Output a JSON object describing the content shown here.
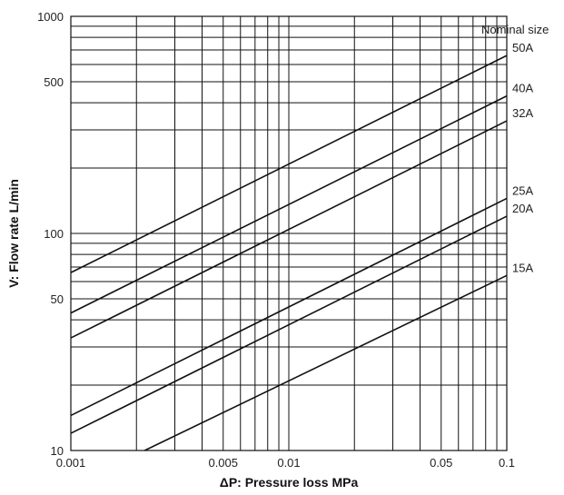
{
  "chart_data": {
    "type": "line",
    "title": "",
    "xlabel": "ΔP: Pressure loss MPa",
    "ylabel": "V: Flow rate L/min",
    "x_scale": "log",
    "y_scale": "log",
    "xlim": [
      0.001,
      0.1
    ],
    "ylim": [
      10,
      1000
    ],
    "grid": true,
    "x_ticks": [
      "0.001",
      "0.005",
      "0.01",
      "0.05",
      "0.1"
    ],
    "y_ticks": [
      "10",
      "50",
      "100",
      "500",
      "1000"
    ],
    "legend_title": "Nominal size",
    "series": [
      {
        "name": "50A",
        "x": [
          0.001,
          0.1
        ],
        "y": [
          66,
          660
        ]
      },
      {
        "name": "40A",
        "x": [
          0.001,
          0.1
        ],
        "y": [
          43,
          430
        ]
      },
      {
        "name": "32A",
        "x": [
          0.001,
          0.1
        ],
        "y": [
          33,
          330
        ]
      },
      {
        "name": "25A",
        "x": [
          0.001,
          0.1
        ],
        "y": [
          14.5,
          145
        ]
      },
      {
        "name": "20A",
        "x": [
          0.001,
          0.1
        ],
        "y": [
          12,
          120
        ]
      },
      {
        "name": "15A",
        "x": [
          0.00218,
          0.1
        ],
        "y": [
          10,
          64
        ]
      }
    ]
  }
}
